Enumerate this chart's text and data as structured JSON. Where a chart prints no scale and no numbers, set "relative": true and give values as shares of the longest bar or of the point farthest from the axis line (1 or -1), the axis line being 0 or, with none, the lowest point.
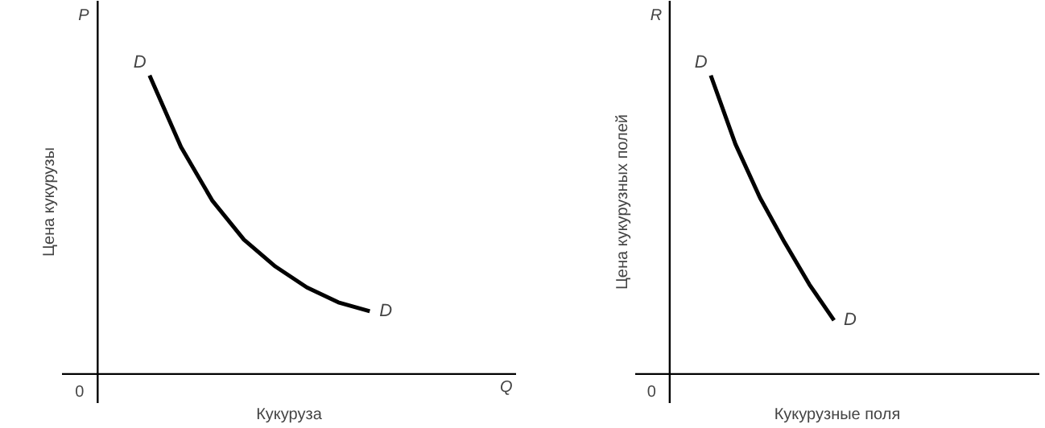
{
  "chart_data": [
    {
      "type": "line",
      "relative": true,
      "ylabel": "Цена кукурузы",
      "xlabel": "Кукуруза",
      "annotations": [
        "P",
        "Q",
        "0"
      ],
      "categories": [
        null,
        null,
        null,
        null,
        null,
        null,
        null,
        null
      ],
      "grid": false,
      "legend": false,
      "series": [
        {
          "name": "D",
          "color": "#000000",
          "values": [
            1,
            0.76,
            0.58,
            0.45,
            0.36,
            0.29,
            0.24,
            0.21
          ]
        }
      ]
    },
    {
      "type": "line",
      "relative": true,
      "ylabel": "Цена кукурузных полей",
      "xlabel": "Кукурузные поля",
      "annotations": [
        "R",
        "0"
      ],
      "categories": [
        null,
        null,
        null,
        null,
        null,
        null
      ],
      "grid": false,
      "legend": false,
      "series": [
        {
          "name": "D",
          "color": "#000000",
          "values": [
            1,
            0.77,
            0.59,
            0.44,
            0.3,
            0.18
          ]
        }
      ]
    }
  ]
}
